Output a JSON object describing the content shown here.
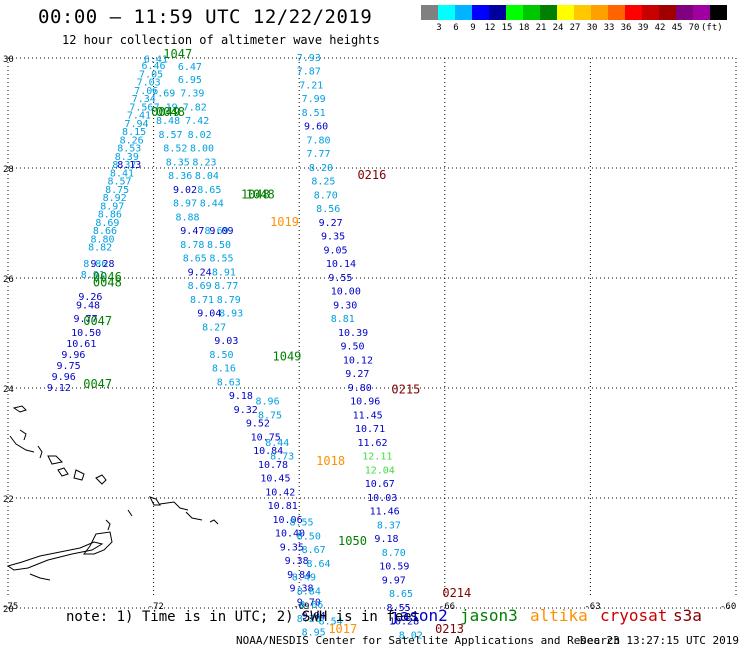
{
  "header": {
    "title": "00:00 – 11:59 UTC 12/22/2019",
    "subtitle": "12 hour collection of altimeter wave heights"
  },
  "color_scale": {
    "colors": [
      "#808080",
      "#00ffff",
      "#00b4ff",
      "#0000ff",
      "#0000a0",
      "#00ff00",
      "#00c800",
      "#008000",
      "#ffff00",
      "#ffc800",
      "#ffa000",
      "#ff6400",
      "#ff0000",
      "#c80000",
      "#a00000",
      "#800080",
      "#a000a0",
      "#000000"
    ],
    "labels": [
      "3",
      "6",
      "9",
      "12",
      "15",
      "18",
      "21",
      "24",
      "27",
      "30",
      "33",
      "36",
      "39",
      "42",
      "45",
      "70",
      "(ft)"
    ]
  },
  "axes": {
    "lat_ticks": [
      "30",
      "28",
      "26",
      "24",
      "22",
      "20"
    ],
    "lon_ticks": [
      "-75",
      "-72",
      "-69",
      "-66",
      "-63",
      "-60"
    ]
  },
  "tracks": [
    {
      "id": "t1",
      "color": "#00a0e0",
      "points": [
        {
          "lat": 29.92,
          "lon": -72.2,
          "v": "6.41"
        },
        {
          "lat": 29.8,
          "lon": -72.25,
          "v": "6.46"
        },
        {
          "lat": 29.65,
          "lon": -72.3,
          "v": "7.05"
        },
        {
          "lat": 29.5,
          "lon": -72.35,
          "v": "7.03"
        },
        {
          "lat": 29.35,
          "lon": -72.4,
          "v": "7.06"
        },
        {
          "lat": 29.2,
          "lon": -72.45,
          "v": "7.34"
        },
        {
          "lat": 29.05,
          "lon": -72.5,
          "v": "7.56"
        },
        {
          "lat": 28.9,
          "lon": -72.55,
          "v": "7.41"
        },
        {
          "lat": 28.75,
          "lon": -72.6,
          "v": "7.94"
        },
        {
          "lat": 28.6,
          "lon": -72.65,
          "v": "8.15"
        },
        {
          "lat": 28.45,
          "lon": -72.7,
          "v": "8.26"
        },
        {
          "lat": 28.3,
          "lon": -72.75,
          "v": "8.53"
        },
        {
          "lat": 28.15,
          "lon": -72.8,
          "v": "8.39"
        },
        {
          "lat": 28.0,
          "lon": -72.85,
          "v": "8.37"
        },
        {
          "lat": 27.85,
          "lon": -72.9,
          "v": "8.41"
        },
        {
          "lat": 27.7,
          "lon": -72.95,
          "v": "8.57"
        },
        {
          "lat": 27.55,
          "lon": -73.0,
          "v": "8.75"
        },
        {
          "lat": 27.4,
          "lon": -73.05,
          "v": "8.92"
        },
        {
          "lat": 27.25,
          "lon": -73.1,
          "v": "8.97"
        },
        {
          "lat": 27.1,
          "lon": -73.15,
          "v": "8.86"
        },
        {
          "lat": 26.95,
          "lon": -73.2,
          "v": "8.69"
        },
        {
          "lat": 26.8,
          "lon": -73.25,
          "v": "8.66"
        },
        {
          "lat": 26.65,
          "lon": -73.3,
          "v": "8.80"
        },
        {
          "lat": 26.5,
          "lon": -73.35,
          "v": "8.82"
        },
        {
          "lat": 26.2,
          "lon": -73.45,
          "v": "8.86"
        },
        {
          "lat": 26.0,
          "lon": -73.5,
          "v": "8.91"
        }
      ]
    },
    {
      "id": "t2",
      "color": "#0000c8",
      "points": [
        {
          "lat": 28.0,
          "lon": -72.75,
          "v": "8.13"
        },
        {
          "lat": 26.2,
          "lon": -73.3,
          "v": "9.28"
        },
        {
          "lat": 25.6,
          "lon": -73.55,
          "v": "9.26"
        },
        {
          "lat": 25.45,
          "lon": -73.6,
          "v": "9.48"
        },
        {
          "lat": 25.2,
          "lon": -73.65,
          "v": "9.77"
        },
        {
          "lat": 24.95,
          "lon": -73.7,
          "v": "10.50"
        },
        {
          "lat": 24.75,
          "lon": -73.8,
          "v": "10.61"
        },
        {
          "lat": 24.55,
          "lon": -73.9,
          "v": "9.96"
        },
        {
          "lat": 24.35,
          "lon": -74.0,
          "v": "9.75"
        },
        {
          "lat": 24.15,
          "lon": -74.1,
          "v": "9.96"
        },
        {
          "lat": 23.95,
          "lon": -74.2,
          "v": "9.12"
        }
      ]
    },
    {
      "id": "t3",
      "color": "#00a0e0",
      "points": [
        {
          "lat": 29.78,
          "lon": -71.5,
          "v": "6.47"
        },
        {
          "lat": 29.55,
          "lon": -71.5,
          "v": "6.95"
        },
        {
          "lat": 29.3,
          "lon": -71.45,
          "v": "7.39"
        },
        {
          "lat": 29.05,
          "lon": -71.4,
          "v": "7.82"
        },
        {
          "lat": 28.8,
          "lon": -71.35,
          "v": "7.42"
        },
        {
          "lat": 28.55,
          "lon": -71.3,
          "v": "8.02"
        },
        {
          "lat": 28.3,
          "lon": -71.25,
          "v": "8.00"
        },
        {
          "lat": 28.05,
          "lon": -71.2,
          "v": "8.23"
        },
        {
          "lat": 27.8,
          "lon": -71.15,
          "v": "8.04"
        },
        {
          "lat": 27.55,
          "lon": -71.1,
          "v": "8.65"
        },
        {
          "lat": 27.3,
          "lon": -71.05,
          "v": "8.44"
        },
        {
          "lat": 26.8,
          "lon": -70.95,
          "v": "8.69"
        },
        {
          "lat": 26.55,
          "lon": -70.9,
          "v": "8.50"
        },
        {
          "lat": 26.3,
          "lon": -70.85,
          "v": "8.55"
        },
        {
          "lat": 26.05,
          "lon": -70.8,
          "v": "8.91"
        },
        {
          "lat": 25.8,
          "lon": -70.75,
          "v": "8.77"
        },
        {
          "lat": 25.55,
          "lon": -70.7,
          "v": "8.79"
        },
        {
          "lat": 25.3,
          "lon": -70.65,
          "v": "8.93"
        }
      ]
    },
    {
      "id": "t4",
      "color": "#00a0e0",
      "points": [
        {
          "lat": 29.3,
          "lon": -72.05,
          "v": "7.69"
        },
        {
          "lat": 29.05,
          "lon": -72.0,
          "v": "7.19"
        },
        {
          "lat": 28.8,
          "lon": -71.95,
          "v": "8.48"
        },
        {
          "lat": 28.55,
          "lon": -71.9,
          "v": "8.57"
        },
        {
          "lat": 28.3,
          "lon": -71.8,
          "v": "8.52"
        },
        {
          "lat": 28.05,
          "lon": -71.75,
          "v": "8.35"
        },
        {
          "lat": 27.8,
          "lon": -71.7,
          "v": "8.36"
        },
        {
          "lat": 27.3,
          "lon": -71.6,
          "v": "8.97"
        },
        {
          "lat": 27.05,
          "lon": -71.55,
          "v": "8.88"
        },
        {
          "lat": 26.55,
          "lon": -71.45,
          "v": "8.78"
        },
        {
          "lat": 26.3,
          "lon": -71.4,
          "v": "8.65"
        },
        {
          "lat": 25.8,
          "lon": -71.3,
          "v": "8.69"
        },
        {
          "lat": 25.55,
          "lon": -71.25,
          "v": "8.71"
        },
        {
          "lat": 25.05,
          "lon": -71.0,
          "v": "8.27"
        },
        {
          "lat": 24.55,
          "lon": -70.85,
          "v": "8.50"
        },
        {
          "lat": 24.3,
          "lon": -70.8,
          "v": "8.16"
        },
        {
          "lat": 24.05,
          "lon": -70.7,
          "v": "8.63"
        }
      ]
    },
    {
      "id": "t5",
      "color": "#0000c8",
      "points": [
        {
          "lat": 27.55,
          "lon": -71.6,
          "v": "9.02"
        },
        {
          "lat": 26.8,
          "lon": -71.45,
          "v": "9.47"
        },
        {
          "lat": 26.8,
          "lon": -70.85,
          "v": "9.09"
        },
        {
          "lat": 26.05,
          "lon": -71.3,
          "v": "9.24"
        },
        {
          "lat": 25.3,
          "lon": -71.1,
          "v": "9.04"
        },
        {
          "lat": 24.8,
          "lon": -70.75,
          "v": "9.03"
        },
        {
          "lat": 23.8,
          "lon": -70.45,
          "v": "9.18"
        },
        {
          "lat": 23.55,
          "lon": -70.35,
          "v": "9.32"
        }
      ]
    },
    {
      "id": "t6",
      "color": "#00a0e0",
      "points": [
        {
          "lat": 29.95,
          "lon": -69.05,
          "v": "7.93"
        },
        {
          "lat": 29.7,
          "lon": -69.05,
          "v": "7.87"
        },
        {
          "lat": 29.45,
          "lon": -69.0,
          "v": "7.21"
        },
        {
          "lat": 29.2,
          "lon": -68.95,
          "v": "7.99"
        },
        {
          "lat": 28.95,
          "lon": -68.95,
          "v": "8.51"
        },
        {
          "lat": 28.45,
          "lon": -68.85,
          "v": "7.80"
        },
        {
          "lat": 28.2,
          "lon": -68.85,
          "v": "7.77"
        },
        {
          "lat": 27.95,
          "lon": -68.8,
          "v": "8.20"
        },
        {
          "lat": 27.7,
          "lon": -68.75,
          "v": "8.25"
        },
        {
          "lat": 27.45,
          "lon": -68.7,
          "v": "8.70"
        },
        {
          "lat": 27.2,
          "lon": -68.65,
          "v": "8.56"
        }
      ]
    },
    {
      "id": "t7",
      "color": "#0000c8",
      "points": [
        {
          "lat": 28.7,
          "lon": -68.9,
          "v": "9.60"
        },
        {
          "lat": 26.95,
          "lon": -68.6,
          "v": "9.27"
        },
        {
          "lat": 26.7,
          "lon": -68.55,
          "v": "9.35"
        },
        {
          "lat": 26.45,
          "lon": -68.5,
          "v": "9.05"
        },
        {
          "lat": 26.2,
          "lon": -68.45,
          "v": "10.14"
        },
        {
          "lat": 25.95,
          "lon": -68.4,
          "v": "9.55"
        },
        {
          "lat": 25.7,
          "lon": -68.35,
          "v": "10.00"
        },
        {
          "lat": 25.45,
          "lon": -68.3,
          "v": "9.30"
        },
        {
          "lat": 24.95,
          "lon": -68.2,
          "v": "10.39"
        },
        {
          "lat": 24.7,
          "lon": -68.15,
          "v": "9.50"
        },
        {
          "lat": 24.45,
          "lon": -68.1,
          "v": "10.12"
        },
        {
          "lat": 24.2,
          "lon": -68.05,
          "v": "9.27"
        },
        {
          "lat": 23.95,
          "lon": -68.0,
          "v": "9.80"
        },
        {
          "lat": 23.7,
          "lon": -67.95,
          "v": "10.96"
        },
        {
          "lat": 23.45,
          "lon": -67.9,
          "v": "11.45"
        },
        {
          "lat": 23.2,
          "lon": -67.85,
          "v": "10.71"
        },
        {
          "lat": 22.95,
          "lon": -67.8,
          "v": "11.62"
        },
        {
          "lat": 22.2,
          "lon": -67.65,
          "v": "10.67"
        },
        {
          "lat": 21.95,
          "lon": -67.6,
          "v": "10.03"
        },
        {
          "lat": 21.7,
          "lon": -67.55,
          "v": "11.46"
        },
        {
          "lat": 21.2,
          "lon": -67.45,
          "v": "9.18"
        },
        {
          "lat": 20.7,
          "lon": -67.35,
          "v": "10.59"
        },
        {
          "lat": 20.45,
          "lon": -67.3,
          "v": "9.97"
        },
        {
          "lat": 19.95,
          "lon": -67.2,
          "v": "8.55"
        },
        {
          "lat": 19.7,
          "lon": -67.15,
          "v": "10.28"
        }
      ]
    },
    {
      "id": "t8",
      "color": "#00a0e0",
      "points": [
        {
          "lat": 25.2,
          "lon": -68.35,
          "v": "8.81"
        },
        {
          "lat": 21.45,
          "lon": -67.4,
          "v": "8.37"
        },
        {
          "lat": 20.95,
          "lon": -67.3,
          "v": "8.70"
        },
        {
          "lat": 20.2,
          "lon": -67.15,
          "v": "8.65"
        },
        {
          "lat": 19.45,
          "lon": -66.95,
          "v": "8.02"
        }
      ]
    },
    {
      "id": "t9",
      "color": "#40e040",
      "points": [
        {
          "lat": 22.7,
          "lon": -67.7,
          "v": "12.11"
        },
        {
          "lat": 22.45,
          "lon": -67.65,
          "v": "12.04"
        }
      ]
    },
    {
      "id": "t10",
      "color": "#0000c8",
      "points": [
        {
          "lat": 23.3,
          "lon": -70.1,
          "v": "9.52"
        },
        {
          "lat": 23.05,
          "lon": -70.0,
          "v": "10.75"
        },
        {
          "lat": 22.8,
          "lon": -69.95,
          "v": "10.84"
        },
        {
          "lat": 22.55,
          "lon": -69.85,
          "v": "10.78"
        },
        {
          "lat": 22.3,
          "lon": -69.8,
          "v": "10.45"
        },
        {
          "lat": 22.05,
          "lon": -69.7,
          "v": "10.42"
        },
        {
          "lat": 21.8,
          "lon": -69.65,
          "v": "10.81"
        },
        {
          "lat": 21.55,
          "lon": -69.55,
          "v": "10.06"
        },
        {
          "lat": 21.3,
          "lon": -69.5,
          "v": "10.40"
        },
        {
          "lat": 21.05,
          "lon": -69.4,
          "v": "9.35"
        },
        {
          "lat": 20.8,
          "lon": -69.3,
          "v": "9.38"
        },
        {
          "lat": 20.55,
          "lon": -69.25,
          "v": "9.84"
        },
        {
          "lat": 20.3,
          "lon": -69.2,
          "v": "9.38"
        },
        {
          "lat": 20.05,
          "lon": -69.05,
          "v": "9.70"
        },
        {
          "lat": 19.8,
          "lon": -68.95,
          "v": "9.04"
        }
      ]
    },
    {
      "id": "t11",
      "color": "#00a0e0",
      "points": [
        {
          "lat": 23.7,
          "lon": -69.9,
          "v": "8.96"
        },
        {
          "lat": 23.45,
          "lon": -69.85,
          "v": "8.75"
        },
        {
          "lat": 22.95,
          "lon": -69.7,
          "v": "8.44"
        },
        {
          "lat": 22.7,
          "lon": -69.6,
          "v": "8.73"
        },
        {
          "lat": 21.5,
          "lon": -69.2,
          "v": "8.55"
        },
        {
          "lat": 21.25,
          "lon": -69.05,
          "v": "8.50"
        },
        {
          "lat": 21.0,
          "lon": -68.95,
          "v": "8.67"
        },
        {
          "lat": 20.75,
          "lon": -68.85,
          "v": "8.64"
        },
        {
          "lat": 20.5,
          "lon": -69.15,
          "v": "8.49"
        },
        {
          "lat": 20.25,
          "lon": -69.05,
          "v": "8.84"
        },
        {
          "lat": 20.0,
          "lon": -69.0,
          "v": "8.66"
        },
        {
          "lat": 19.75,
          "lon": -69.05,
          "v": "8.28"
        },
        {
          "lat": 19.5,
          "lon": -68.95,
          "v": "8.95"
        },
        {
          "lat": 19.7,
          "lon": -68.6,
          "v": "8.54"
        }
      ]
    }
  ],
  "time_labels": [
    {
      "lat": 30.0,
      "lon": -71.8,
      "t": "1047",
      "color": "#008000"
    },
    {
      "lat": 28.95,
      "lon": -72.05,
      "t": "0049",
      "color": "#008000"
    },
    {
      "lat": 28.95,
      "lon": -71.95,
      "t": "0048",
      "color": "#008000"
    },
    {
      "lat": 27.45,
      "lon": -70.2,
      "t": "1048",
      "color": "#008000"
    },
    {
      "lat": 27.45,
      "lon": -70.1,
      "t": "1048",
      "color": "#008000"
    },
    {
      "lat": 26.95,
      "lon": -69.6,
      "t": "1019",
      "color": "#ff9000"
    },
    {
      "lat": 25.95,
      "lon": -73.25,
      "t": "0046",
      "color": "#008000"
    },
    {
      "lat": 25.85,
      "lon": -73.25,
      "t": "0048",
      "color": "#008000"
    },
    {
      "lat": 25.15,
      "lon": -73.45,
      "t": "0047",
      "color": "#008000"
    },
    {
      "lat": 24.5,
      "lon": -69.55,
      "t": "1049",
      "color": "#008000"
    },
    {
      "lat": 24.0,
      "lon": -73.45,
      "t": "0047",
      "color": "#008000"
    },
    {
      "lat": 22.6,
      "lon": -68.65,
      "t": "1018",
      "color": "#ff9000"
    },
    {
      "lat": 21.15,
      "lon": -68.2,
      "t": "1050",
      "color": "#008000"
    },
    {
      "lat": 19.55,
      "lon": -68.4,
      "t": "1017",
      "color": "#ff9000"
    },
    {
      "lat": 27.8,
      "lon": -67.8,
      "t": "0216",
      "color": "#800000"
    },
    {
      "lat": 23.9,
      "lon": -67.1,
      "t": "0215",
      "color": "#800000"
    },
    {
      "lat": 20.2,
      "lon": -66.05,
      "t": "0214",
      "color": "#800000"
    },
    {
      "lat": 19.55,
      "lon": -66.2,
      "t": "0213",
      "color": "#800000"
    }
  ],
  "footer": {
    "note": "note: 1) Time is in UTC; 2) SWH is in feet",
    "satellites": [
      {
        "name": "jason2",
        "color": "#0000c8"
      },
      {
        "name": "jason3",
        "color": "#008000"
      },
      {
        "name": "altika",
        "color": "#ff9000"
      },
      {
        "name": "cryosat",
        "color": "#c80000"
      },
      {
        "name": "s3a",
        "color": "#800000"
      }
    ],
    "credit": "NOAA/NESDIS Center for Satellite Applications and Research",
    "timestamp": "Dec 23 13:27:15 UTC 2019"
  }
}
